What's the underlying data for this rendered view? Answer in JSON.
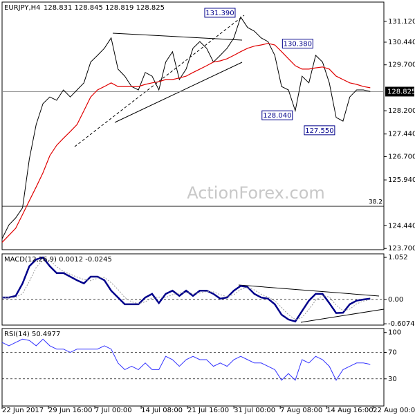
{
  "chart_data": [
    {
      "type": "line",
      "title": "EURJPY,H4",
      "subtitle": "128.831 128.845 128.819 128.825",
      "watermark": "ActionForex.com",
      "xlim": [
        0,
        280
      ],
      "x": [
        0,
        5,
        10,
        15,
        20,
        25,
        30,
        35,
        40,
        45,
        50,
        55,
        60,
        65,
        70,
        75,
        80,
        85,
        90,
        95,
        100,
        105,
        110,
        115,
        120,
        125,
        130,
        135,
        140,
        145,
        150,
        155,
        160,
        165,
        170,
        175,
        180,
        185,
        190,
        195,
        200,
        205,
        210,
        215,
        220,
        225,
        230,
        235,
        240,
        245,
        250,
        255,
        260,
        265,
        270
      ],
      "ylim": [
        123.66,
        131.75
      ],
      "yticks": [
        {
          "value": 123.7,
          "label": "123.700"
        },
        {
          "value": 124.44,
          "label": "124.440"
        },
        {
          "value": 125.94,
          "label": "125.940"
        },
        {
          "value": 126.7,
          "label": "126.700"
        },
        {
          "value": 127.44,
          "label": "127.440"
        },
        {
          "value": 128.2,
          "label": "128.200"
        },
        {
          "value": 129.7,
          "label": "129.700"
        },
        {
          "value": 130.44,
          "label": "130.440"
        },
        {
          "value": 131.12,
          "label": "131.120"
        }
      ],
      "series": [
        {
          "name": "Price",
          "color": "#000000",
          "values": [
            124.02,
            124.47,
            124.7,
            125.03,
            126.62,
            127.75,
            128.43,
            128.65,
            128.54,
            128.88,
            128.65,
            128.88,
            129.11,
            129.79,
            130.01,
            130.24,
            130.58,
            129.56,
            129.33,
            128.99,
            128.88,
            129.45,
            129.33,
            128.88,
            129.79,
            130.13,
            129.22,
            129.56,
            130.24,
            130.46,
            130.24,
            129.79,
            130.01,
            130.24,
            130.58,
            131.26,
            130.92,
            130.8,
            130.58,
            130.46,
            130.01,
            128.99,
            128.88,
            128.2,
            129.33,
            129.11,
            130.01,
            129.79,
            129.11,
            127.98,
            127.86,
            128.65,
            128.88,
            128.88,
            128.83
          ]
        },
        {
          "name": "MA",
          "color": "#e00000",
          "values": [
            123.9,
            124.13,
            124.36,
            124.81,
            125.26,
            125.71,
            126.17,
            126.73,
            127.07,
            127.3,
            127.52,
            127.75,
            128.2,
            128.65,
            128.88,
            128.99,
            129.11,
            128.99,
            128.99,
            128.99,
            128.99,
            129.06,
            129.11,
            129.15,
            129.22,
            129.22,
            129.27,
            129.33,
            129.45,
            129.56,
            129.67,
            129.79,
            129.83,
            129.9,
            130.01,
            130.13,
            130.24,
            130.31,
            130.35,
            130.4,
            130.35,
            130.13,
            129.9,
            129.67,
            129.56,
            129.56,
            129.6,
            129.63,
            129.56,
            129.33,
            129.22,
            129.11,
            129.06,
            128.99,
            128.95
          ]
        }
      ],
      "last_price": 128.825,
      "fib_level": {
        "ratio": 38.2,
        "price": 125.08
      },
      "annotations": [
        {
          "x": 176,
          "value": 131.39,
          "label": "131.390"
        },
        {
          "x": 233,
          "value": 130.38,
          "label": "130.380"
        },
        {
          "x": 218,
          "value": 128.04,
          "label": "128.040"
        },
        {
          "x": 249,
          "value": 127.55,
          "label": "127.550"
        }
      ]
    },
    {
      "type": "line",
      "title": "MACD(12,26,9) 0.0012 -0.0245",
      "ylim": [
        -0.64,
        1.14
      ],
      "yticks": [
        {
          "value": -0.6074,
          "label": "-0.6074"
        },
        {
          "value": 0,
          "label": "0.00"
        },
        1.052
      ],
      "zero_line": 0,
      "series": [
        {
          "name": "MACD",
          "color": "#00008b",
          "values": [
            0.05,
            0.05,
            0.09,
            0.4,
            0.83,
            1.0,
            1.05,
            0.83,
            0.66,
            0.66,
            0.57,
            0.48,
            0.4,
            0.57,
            0.57,
            0.48,
            0.22,
            0.05,
            -0.12,
            -0.12,
            -0.12,
            0.05,
            0.14,
            -0.09,
            0.14,
            0.22,
            0.09,
            0.22,
            0.09,
            0.22,
            0.22,
            0.14,
            0.02,
            0.05,
            0.22,
            0.34,
            0.31,
            0.14,
            0.05,
            0.02,
            -0.12,
            -0.38,
            -0.5,
            -0.55,
            -0.29,
            -0.03,
            0.14,
            0.14,
            -0.09,
            -0.34,
            -0.33,
            -0.12,
            -0.03,
            0.0,
            0.02
          ]
        },
        {
          "name": "Signal",
          "color": "#999999",
          "values": [
            0.05,
            0.05,
            0.05,
            0.15,
            0.45,
            0.8,
            0.98,
            0.98,
            0.82,
            0.7,
            0.63,
            0.56,
            0.5,
            0.47,
            0.53,
            0.55,
            0.42,
            0.25,
            0.05,
            -0.06,
            -0.1,
            -0.06,
            0.04,
            0.06,
            0.05,
            0.12,
            0.16,
            0.17,
            0.15,
            0.16,
            0.2,
            0.19,
            0.12,
            0.07,
            0.12,
            0.25,
            0.3,
            0.24,
            0.13,
            0.06,
            -0.03,
            -0.2,
            -0.38,
            -0.5,
            -0.45,
            -0.25,
            -0.02,
            0.1,
            0.06,
            -0.14,
            -0.28,
            -0.24,
            -0.11,
            -0.04,
            0.0
          ]
        }
      ]
    },
    {
      "type": "line",
      "title": "RSI(14) 50.4977",
      "ylim": [
        -11,
        106
      ],
      "yticks": [
        30,
        70,
        100
      ],
      "levels": [
        30,
        70
      ],
      "series": [
        {
          "name": "RSI",
          "color": "#3232ff",
          "values": [
            85,
            80,
            85,
            90,
            88,
            80,
            90,
            80,
            75,
            75,
            70,
            75,
            75,
            75,
            75,
            80,
            75,
            54,
            44,
            49,
            44,
            54,
            44,
            44,
            64,
            59,
            49,
            59,
            64,
            59,
            59,
            49,
            54,
            49,
            59,
            64,
            59,
            54,
            54,
            49,
            44,
            28,
            38,
            28,
            59,
            54,
            64,
            59,
            49,
            28,
            44,
            49,
            54,
            54,
            52
          ]
        }
      ],
      "xticks": [
        {
          "value": 0,
          "label": "22 Jun 2017"
        },
        {
          "value": 34,
          "label": "29 Jun 16:00"
        },
        {
          "value": 68,
          "label": "7 Jul 00:00"
        },
        {
          "value": 102,
          "label": "14 Jul 08:00"
        },
        {
          "value": 136,
          "label": "21 Jul 16:00"
        },
        {
          "value": 170,
          "label": "31 Jul 00:00"
        },
        {
          "value": 204,
          "label": "7 Aug 08:00"
        },
        {
          "value": 238,
          "label": "14 Aug 16:00"
        },
        {
          "value": 272,
          "label": "22 Aug 00:00"
        }
      ]
    }
  ]
}
